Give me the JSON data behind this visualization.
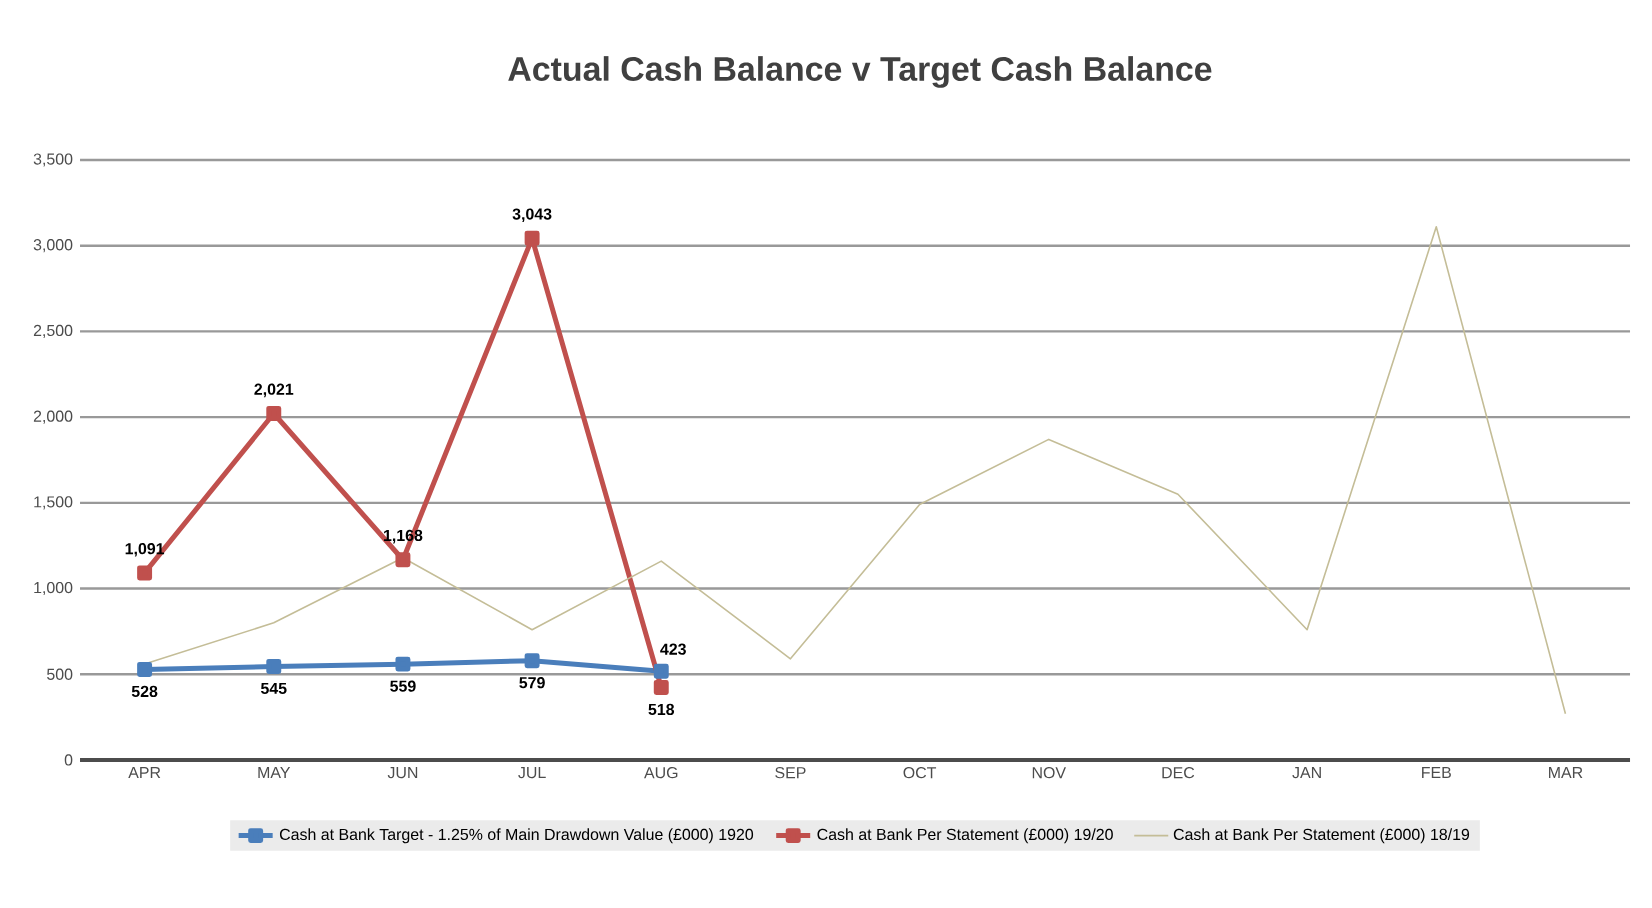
{
  "chart_data": {
    "type": "line",
    "title": "Actual Cash Balance v Target Cash Balance",
    "categories": [
      "APR",
      "MAY",
      "JUN",
      "JUL",
      "AUG",
      "SEP",
      "OCT",
      "NOV",
      "DEC",
      "JAN",
      "FEB",
      "MAR"
    ],
    "series": [
      {
        "name": "Cash at Bank Target - 1.25% of Main Drawdown Value (£000) 1920",
        "color": "#4a7ebb",
        "marker": "square",
        "values": [
          528,
          545,
          559,
          579,
          518,
          null,
          null,
          null,
          null,
          null,
          null,
          null
        ],
        "value_labels": [
          "528",
          "545",
          "559",
          "579",
          "518",
          null,
          null,
          null,
          null,
          null,
          null,
          null
        ]
      },
      {
        "name": "Cash at Bank Per Statement (£000) 19/20",
        "color": "#c0504d",
        "marker": "square",
        "values": [
          1091,
          2021,
          1168,
          3043,
          423,
          null,
          null,
          null,
          null,
          null,
          null,
          null
        ],
        "value_labels": [
          "1,091",
          "2,021",
          "1,168",
          "3,043",
          "423",
          null,
          null,
          null,
          null,
          null,
          null,
          null
        ]
      },
      {
        "name": "Cash at Bank Per Statement (£000) 18/19",
        "color": "#c4bd97",
        "marker": "none",
        "values": [
          560,
          800,
          1180,
          760,
          1160,
          590,
          1490,
          1870,
          1550,
          760,
          3110,
          270
        ]
      }
    ],
    "ylim": [
      0,
      3500
    ],
    "yticks": [
      0,
      500,
      {
        "value": 1000,
        "label": "1,000"
      },
      {
        "value": 1500,
        "label": "1,500"
      },
      {
        "value": 2000,
        "label": "2,000"
      },
      {
        "value": 2500,
        "label": "2,500"
      },
      {
        "value": 3000,
        "label": "3,000"
      },
      {
        "value": 3500,
        "label": "3,500"
      }
    ],
    "grid": "y",
    "legend": "bottom"
  }
}
